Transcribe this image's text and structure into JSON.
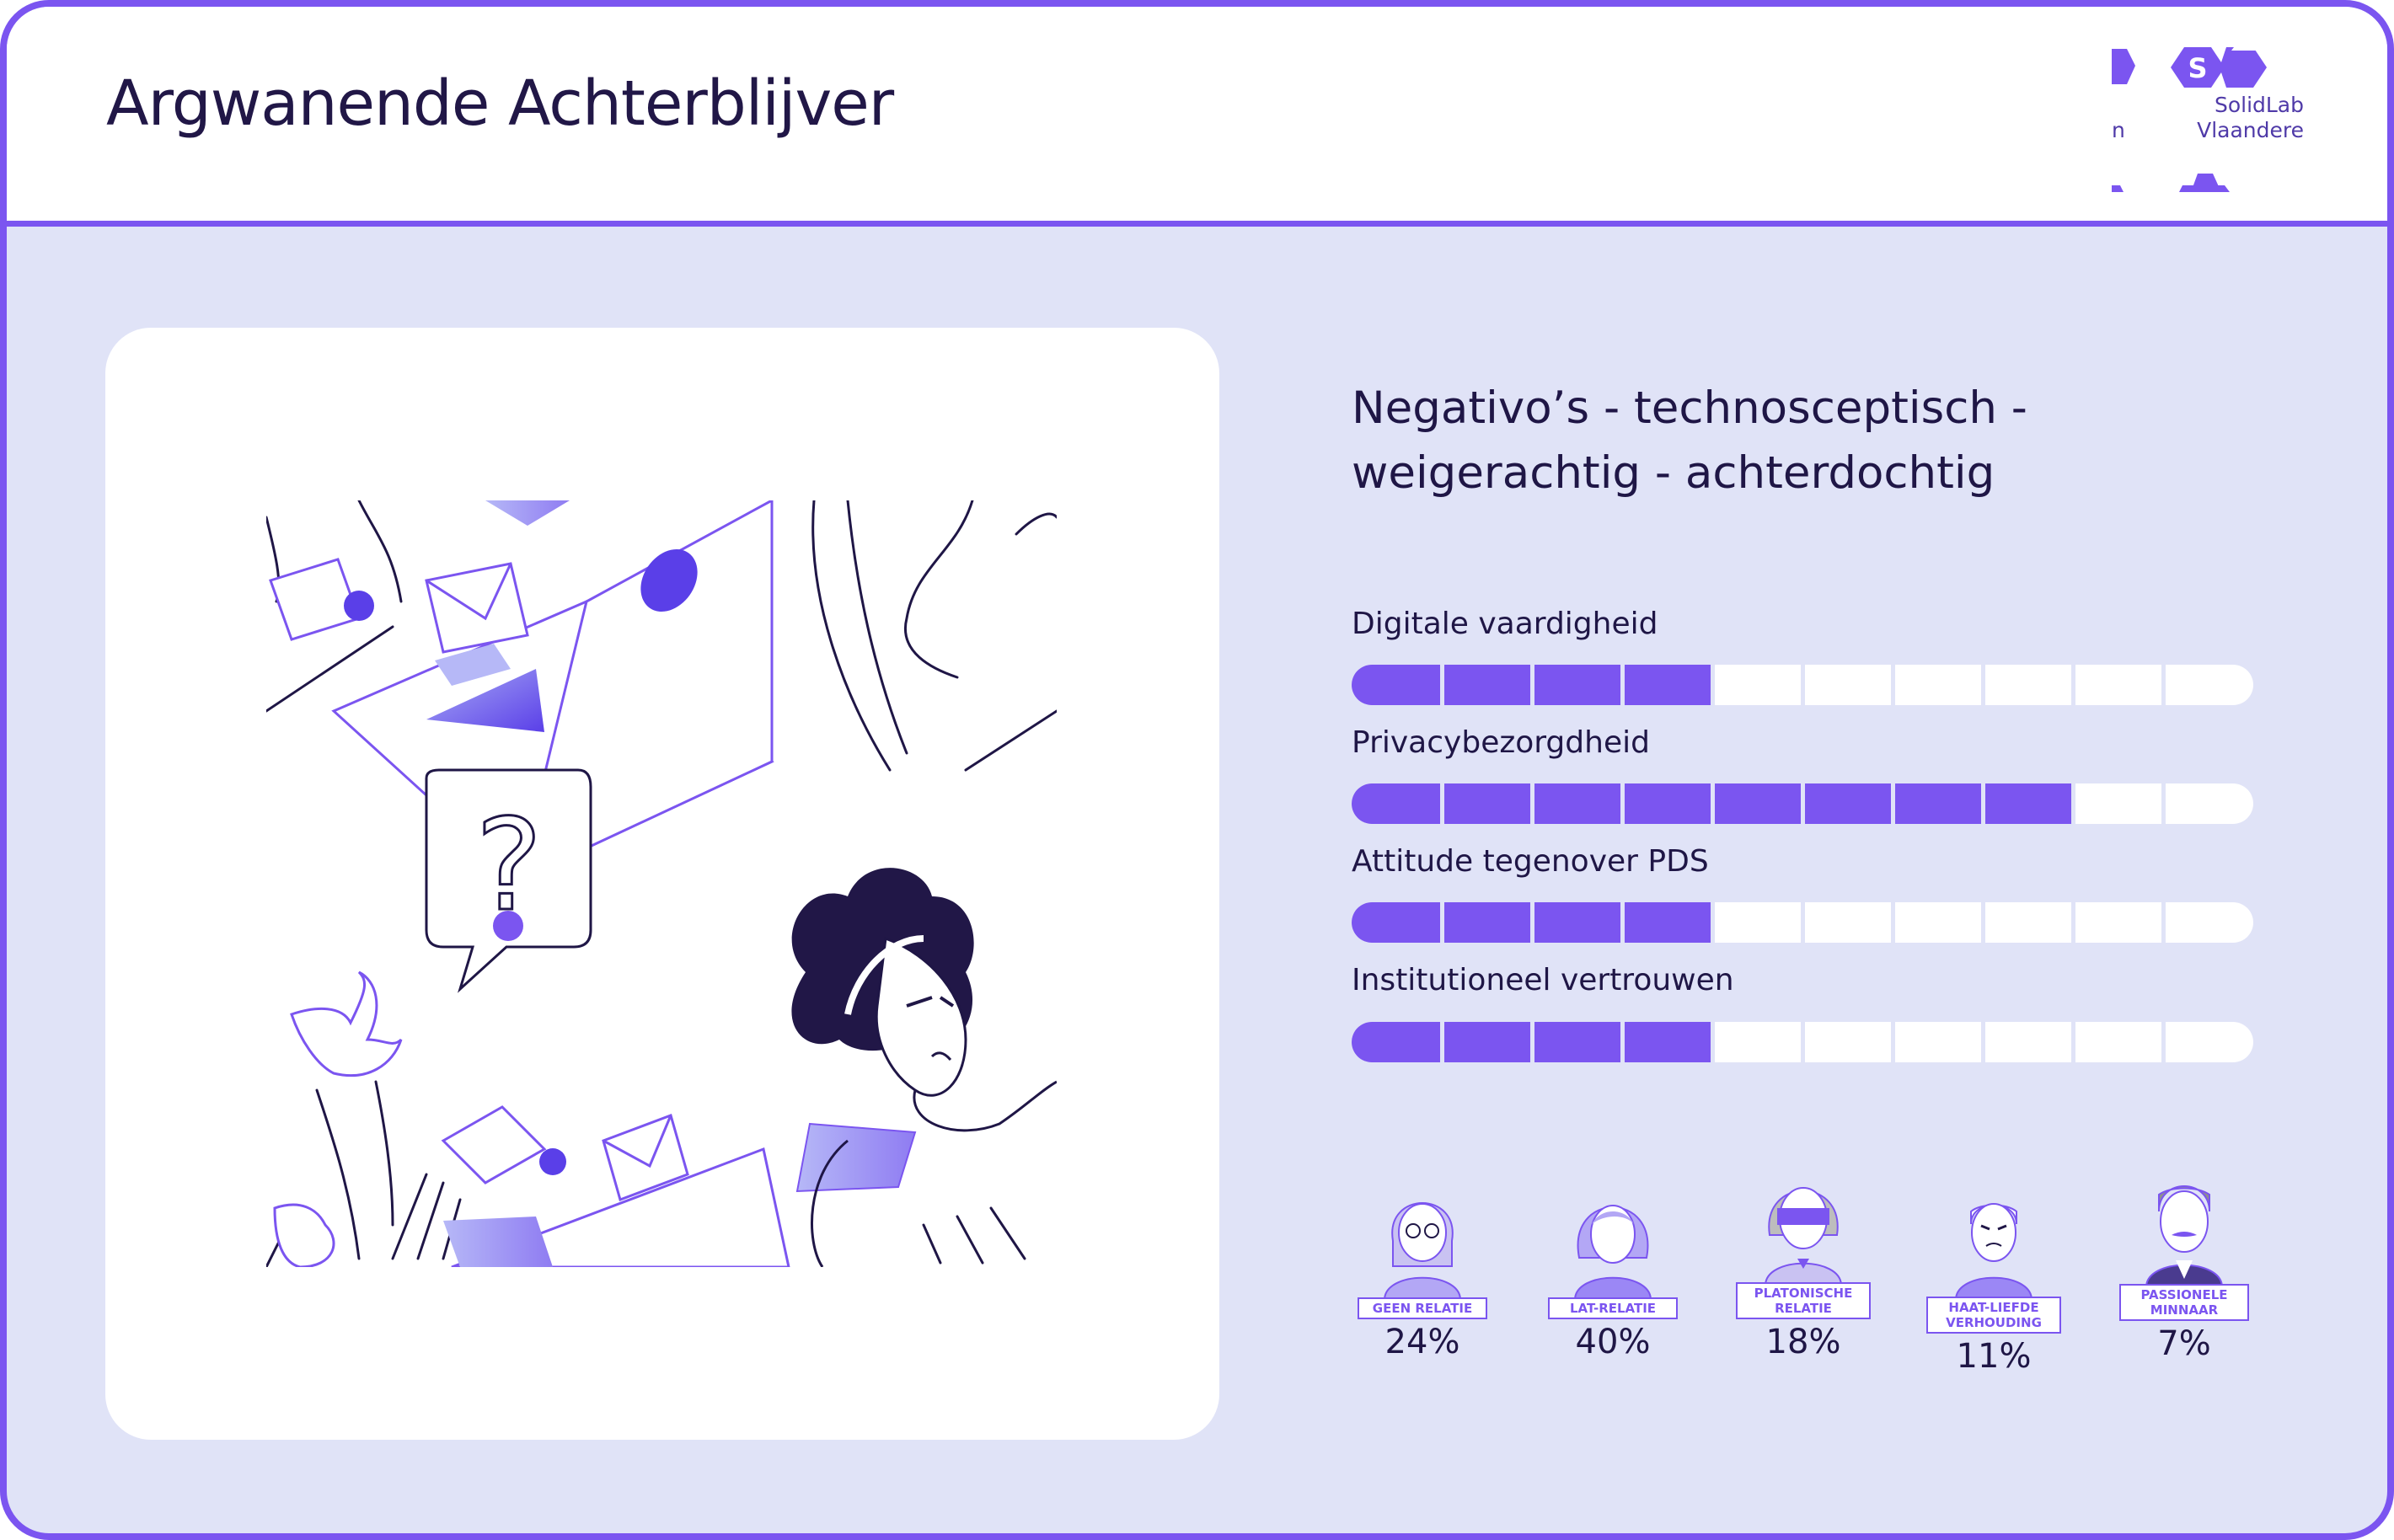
{
  "header": {
    "title": "Argwanende Achterblijver",
    "logo": {
      "line1": "SolidLab",
      "line2": "Vlaandere",
      "partial_text": "n"
    }
  },
  "profile": {
    "subtitle_line1": "Negativo’s - technosceptisch -",
    "subtitle_line2": "weigerachtig - achterdochtig",
    "metrics": [
      {
        "label": "Digitale vaardigheid",
        "level": 4,
        "max": 10
      },
      {
        "label": "Privacybezorgdheid",
        "level": 8,
        "max": 10
      },
      {
        "label": "Attitude tegenover PDS",
        "level": 4,
        "max": 10
      },
      {
        "label": "Institutioneel vertrouwen",
        "level": 4,
        "max": 10
      }
    ],
    "relationships": [
      {
        "label": "GEEN RELATIE",
        "percent": "24%",
        "icon": "woman-glasses-icon"
      },
      {
        "label": "LAT-RELATIE",
        "percent": "40%",
        "icon": "woman-icon"
      },
      {
        "label": "PLATONISCHE RELATIE",
        "percent": "18%",
        "icon": "blindfolded-person-icon"
      },
      {
        "label": "HAAT-LIEFDE VERHOUDING",
        "percent": "11%",
        "icon": "angry-man-icon"
      },
      {
        "label": "PASSIONELE MINNAAR",
        "percent": "7%",
        "icon": "mustache-man-icon"
      }
    ]
  },
  "colors": {
    "accent": "#7b55f0",
    "background": "#e0e3f7",
    "text": "#1f1646",
    "card": "#ffffff"
  },
  "illustration": {
    "icon": "suspicious-woman-illustration",
    "question_icon": "question-mark-icon"
  }
}
